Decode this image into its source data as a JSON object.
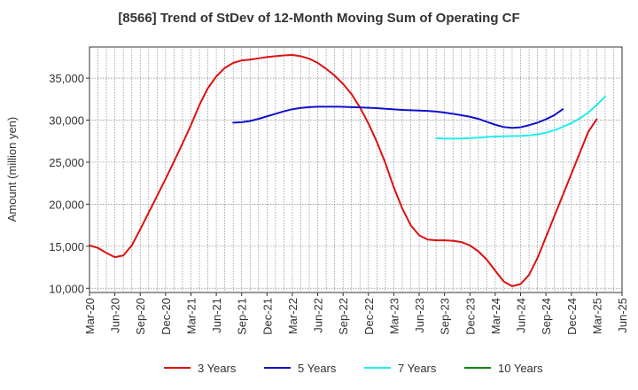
{
  "chart_data": {
    "type": "line",
    "title": "[8566]  Trend of StDev of 12-Month Moving Sum of Operating CF",
    "xlabel": "",
    "ylabel": "Amount (million yen)",
    "ylim": [
      9500,
      38700
    ],
    "yticks": [
      10000,
      15000,
      20000,
      25000,
      30000,
      35000
    ],
    "ytick_labels": [
      "10,000",
      "15,000",
      "20,000",
      "25,000",
      "30,000",
      "35,000"
    ],
    "x_start": "Mar-20",
    "x_end": "Jun-25",
    "x_ticks": [
      "Mar-20",
      "Jun-20",
      "Sep-20",
      "Dec-20",
      "Mar-21",
      "Jun-21",
      "Sep-21",
      "Dec-21",
      "Mar-22",
      "Jun-22",
      "Sep-22",
      "Dec-22",
      "Mar-23",
      "Jun-23",
      "Sep-23",
      "Dec-23",
      "Mar-24",
      "Jun-24",
      "Sep-24",
      "Dec-24",
      "Mar-25",
      "Jun-25"
    ],
    "grid": true,
    "legend_position": "bottom",
    "series": [
      {
        "name": "3 Years",
        "color": "#dd1111",
        "start": "Mar-20",
        "values": [
          15100,
          14800,
          14200,
          13700,
          13900,
          15100,
          17000,
          19000,
          21000,
          23000,
          25100,
          27200,
          29400,
          31800,
          33800,
          35200,
          36200,
          36800,
          37100,
          37200,
          37350,
          37500,
          37600,
          37700,
          37750,
          37600,
          37300,
          36800,
          36100,
          35300,
          34300,
          33100,
          31500,
          29600,
          27400,
          24900,
          22000,
          19500,
          17500,
          16300,
          15800,
          15700,
          15700,
          15650,
          15500,
          15100,
          14400,
          13400,
          12100,
          10800,
          10250,
          10500,
          11600,
          13600,
          16100,
          18600,
          21100,
          23600,
          26100,
          28600,
          30100
        ]
      },
      {
        "name": "5 Years",
        "color": "#1111cc",
        "start": "Aug-21",
        "values": [
          29700,
          29750,
          29900,
          30150,
          30450,
          30750,
          31050,
          31300,
          31450,
          31550,
          31600,
          31600,
          31600,
          31580,
          31550,
          31520,
          31470,
          31420,
          31350,
          31280,
          31220,
          31170,
          31130,
          31100,
          31020,
          30900,
          30750,
          30580,
          30400,
          30150,
          29800,
          29450,
          29180,
          29080,
          29150,
          29400,
          29700,
          30100,
          30600,
          31300
        ]
      },
      {
        "name": "7 Years",
        "color": "#22eeee",
        "start": "Aug-23",
        "values": [
          27850,
          27800,
          27800,
          27820,
          27860,
          27920,
          28000,
          28050,
          28080,
          28100,
          28120,
          28180,
          28300,
          28500,
          28800,
          29200,
          29650,
          30200,
          30900,
          31800,
          32800
        ]
      },
      {
        "name": "10 Years",
        "color": "#118811",
        "start": "Mar-25",
        "values": []
      }
    ]
  }
}
